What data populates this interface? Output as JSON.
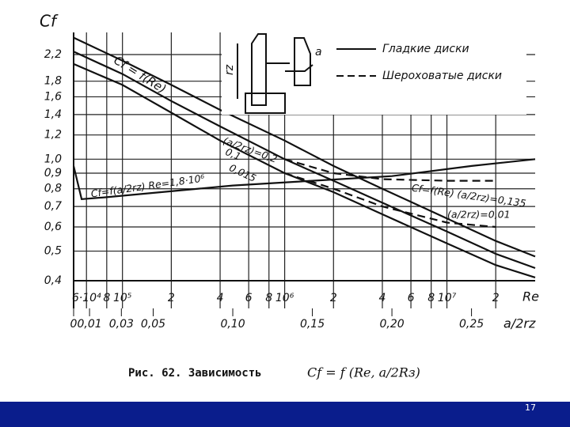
{
  "chart_data": {
    "type": "line",
    "y_label": "Cf",
    "x_label": "Re",
    "x2_label": "a/2rz",
    "xscale": "log",
    "yscale": "log",
    "grid": true,
    "xlim": [
      50000,
      35000000
    ],
    "xticks": [
      {
        "value": 60000,
        "label": "6·10⁴"
      },
      {
        "value": 80000,
        "label": "8"
      },
      {
        "value": 100000,
        "label": "10⁵"
      },
      {
        "value": 200000,
        "label": "2"
      },
      {
        "value": 400000,
        "label": "4"
      },
      {
        "value": 600000,
        "label": "6"
      },
      {
        "value": 800000,
        "label": "8"
      },
      {
        "value": 1000000,
        "label": "10⁶"
      },
      {
        "value": 2000000,
        "label": "2"
      },
      {
        "value": 4000000,
        "label": "4"
      },
      {
        "value": 6000000,
        "label": "6"
      },
      {
        "value": 8000000,
        "label": "8"
      },
      {
        "value": 10000000,
        "label": "10⁷"
      },
      {
        "value": 20000000,
        "label": "2"
      }
    ],
    "x2lim": [
      0,
      0.29
    ],
    "x2ticks": [
      0,
      {
        "value": 0.01,
        "label": "0,01"
      },
      {
        "value": 0.03,
        "label": "0,03"
      },
      {
        "value": 0.05,
        "label": "0,05"
      },
      {
        "value": 0.1,
        "label": "0,10"
      },
      {
        "value": 0.15,
        "label": "0,15"
      },
      {
        "value": 0.2,
        "label": "0,20"
      },
      {
        "value": 0.25,
        "label": "0,25"
      }
    ],
    "ylim": [
      0.4,
      2.6
    ],
    "yticks": [
      {
        "value": 0.4,
        "label": "0,4"
      },
      {
        "value": 0.5,
        "label": "0,5"
      },
      {
        "value": 0.6,
        "label": "0,6"
      },
      {
        "value": 0.7,
        "label": "0,7"
      },
      {
        "value": 0.8,
        "label": "0,8"
      },
      {
        "value": 0.9,
        "label": "0,9"
      },
      {
        "value": 1.0,
        "label": "1,0"
      },
      {
        "value": 1.2,
        "label": "1,2"
      },
      {
        "value": 1.4,
        "label": "1,4"
      },
      {
        "value": 1.6,
        "label": "1,6"
      },
      {
        "value": 1.8,
        "label": "1,8"
      },
      {
        "value": 2.2,
        "label": "2,2"
      }
    ],
    "series": [
      {
        "name": "(a/2rz)=0,2",
        "color": "#111111",
        "dash": false,
        "x": [
          50000,
          100000,
          200000,
          400000,
          1000000,
          2000000,
          4000000,
          10000000,
          20000000,
          35000000
        ],
        "values": [
          2.5,
          2.1,
          1.75,
          1.45,
          1.15,
          0.95,
          0.8,
          0.64,
          0.54,
          0.48
        ]
      },
      {
        "name": "0,1",
        "color": "#111111",
        "dash": false,
        "x": [
          50000,
          100000,
          200000,
          400000,
          1000000,
          2000000,
          4000000,
          10000000,
          20000000,
          35000000
        ],
        "values": [
          2.25,
          1.9,
          1.55,
          1.28,
          1.0,
          0.85,
          0.72,
          0.58,
          0.49,
          0.44
        ]
      },
      {
        "name": "0,015",
        "color": "#111111",
        "dash": false,
        "x": [
          50000,
          100000,
          200000,
          400000,
          1000000,
          2000000,
          4000000,
          10000000,
          20000000,
          35000000
        ],
        "values": [
          2.05,
          1.75,
          1.42,
          1.15,
          0.9,
          0.78,
          0.66,
          0.53,
          0.45,
          0.41
        ]
      },
      {
        "name": "Cf=f(Re) (a/2rz)=0,135",
        "color": "#111111",
        "dash": true,
        "x": [
          1000000,
          2000000,
          4000000,
          10000000,
          20000000
        ],
        "values": [
          1.0,
          0.9,
          0.86,
          0.85,
          0.85
        ]
      },
      {
        "name": "(a/2rz)=0,01",
        "color": "#111111",
        "dash": true,
        "x": [
          1000000,
          2000000,
          4000000,
          10000000,
          20000000
        ],
        "values": [
          0.9,
          0.8,
          0.7,
          0.62,
          0.6
        ]
      },
      {
        "name": "Cf=f(a/2rz) Re=1,8·10⁶",
        "color": "#111111",
        "dash": false,
        "axis": "x2",
        "x": [
          0,
          0.005,
          0.02,
          0.1,
          0.15,
          0.2,
          0.25,
          0.29
        ],
        "values": [
          0.95,
          0.74,
          0.75,
          0.82,
          0.85,
          0.88,
          0.95,
          1.0
        ]
      }
    ],
    "curve_title": "Cf = f(Re)",
    "legend": [
      {
        "label": "Гладкие диски",
        "dash": false
      },
      {
        "label": "Шероховатые диски",
        "dash": true
      }
    ],
    "inset_labels": [
      "a",
      "rz"
    ],
    "caption": "Рис. 62. Зависимость",
    "caption_formula": "Cf = f (Re, a/2Rз)"
  },
  "footer": {
    "page_number": "17"
  }
}
